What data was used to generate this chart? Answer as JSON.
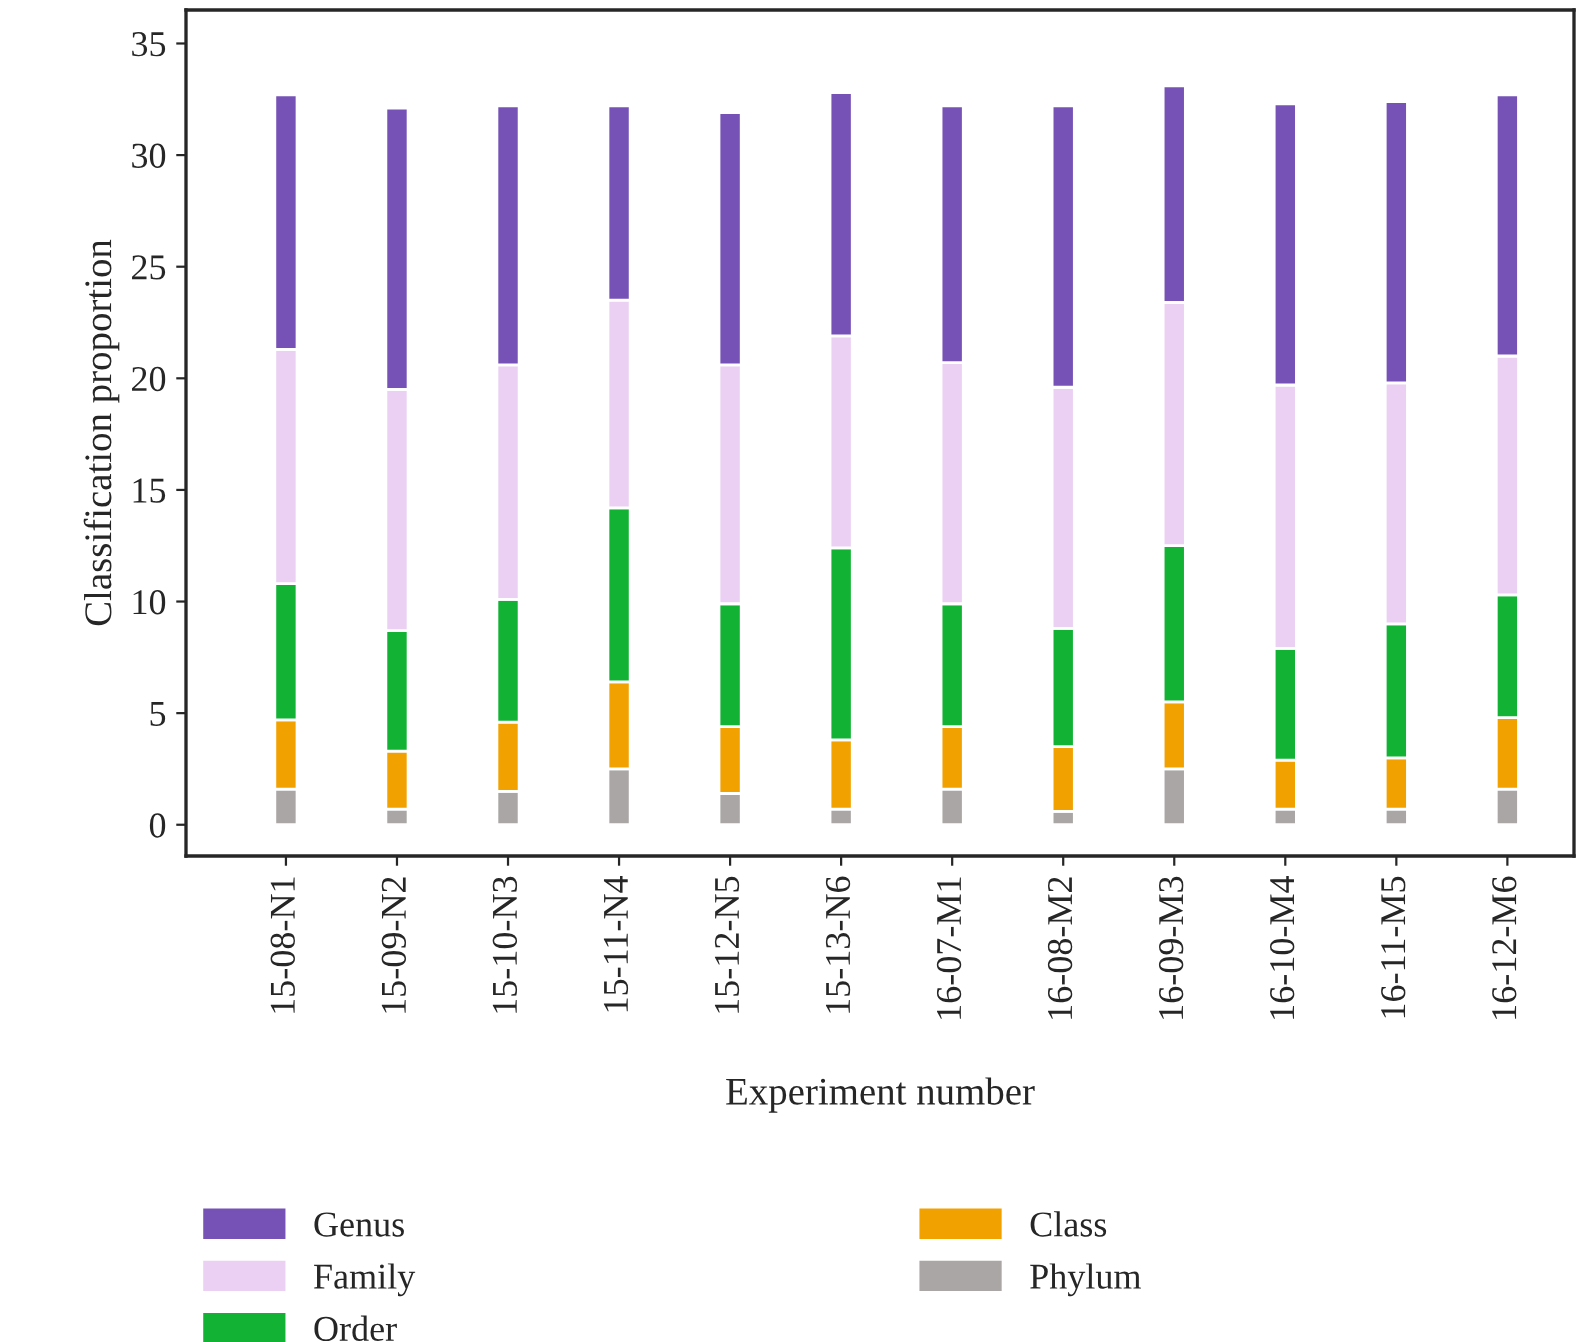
{
  "chart_data": {
    "type": "bar",
    "stacked": true,
    "xlabel": "Experiment number",
    "ylabel": "Classification proportion",
    "categories": [
      "15-08-N1",
      "15-09-N2",
      "15-10-N3",
      "15-11-N4",
      "15-12-N5",
      "15-13-N6",
      "16-07-M1",
      "16-08-M2",
      "16-09-M3",
      "16-10-M4",
      "16-11-M5",
      "16-12-M6"
    ],
    "series": [
      {
        "name": "Phylum",
        "color": "#aaa6a5",
        "values": [
          1.6,
          0.7,
          1.5,
          2.5,
          1.4,
          0.7,
          1.6,
          0.6,
          2.5,
          0.7,
          0.7,
          1.6
        ]
      },
      {
        "name": "Class",
        "color": "#f2a200",
        "values": [
          3.1,
          2.6,
          3.1,
          3.9,
          3.0,
          3.1,
          2.8,
          2.9,
          3.0,
          2.2,
          2.3,
          3.2
        ]
      },
      {
        "name": "Order",
        "color": "#12b335",
        "values": [
          6.1,
          5.4,
          5.5,
          7.8,
          5.5,
          8.6,
          5.5,
          5.3,
          7.0,
          5.0,
          6.0,
          5.5
        ]
      },
      {
        "name": "Family",
        "color": "#ebd0f4",
        "values": [
          10.5,
          10.8,
          10.5,
          9.3,
          10.7,
          9.5,
          10.8,
          10.8,
          10.9,
          11.8,
          10.8,
          10.7
        ]
      },
      {
        "name": "Genus",
        "color": "#7652b6",
        "values": [
          11.4,
          12.6,
          11.6,
          8.7,
          11.3,
          10.9,
          11.5,
          12.6,
          9.7,
          12.6,
          12.6,
          11.7
        ]
      }
    ],
    "ylim": [
      -1.4,
      36.5
    ],
    "yticks": [
      0,
      5,
      10,
      15,
      20,
      25,
      30,
      35
    ],
    "grid": false,
    "legend": "bottom left"
  }
}
